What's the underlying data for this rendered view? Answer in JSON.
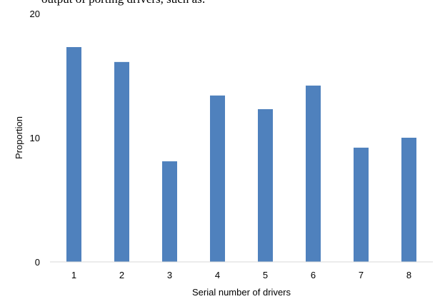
{
  "cropped_caption": "output of porting drivers, such as:",
  "chart_data": {
    "type": "bar",
    "title": "",
    "xlabel": "Serial number of drivers",
    "ylabel": "Proportion",
    "categories": [
      "1",
      "2",
      "3",
      "4",
      "5",
      "6",
      "7",
      "8"
    ],
    "values": [
      17.3,
      16.1,
      8.1,
      13.4,
      12.3,
      14.2,
      9.2,
      10.0
    ],
    "ylim": [
      0,
      20
    ],
    "yticks": [
      "0",
      "10",
      "20"
    ],
    "grid": false,
    "bar_color": "#4f81bd",
    "axis_color": "#d9d9d9"
  }
}
